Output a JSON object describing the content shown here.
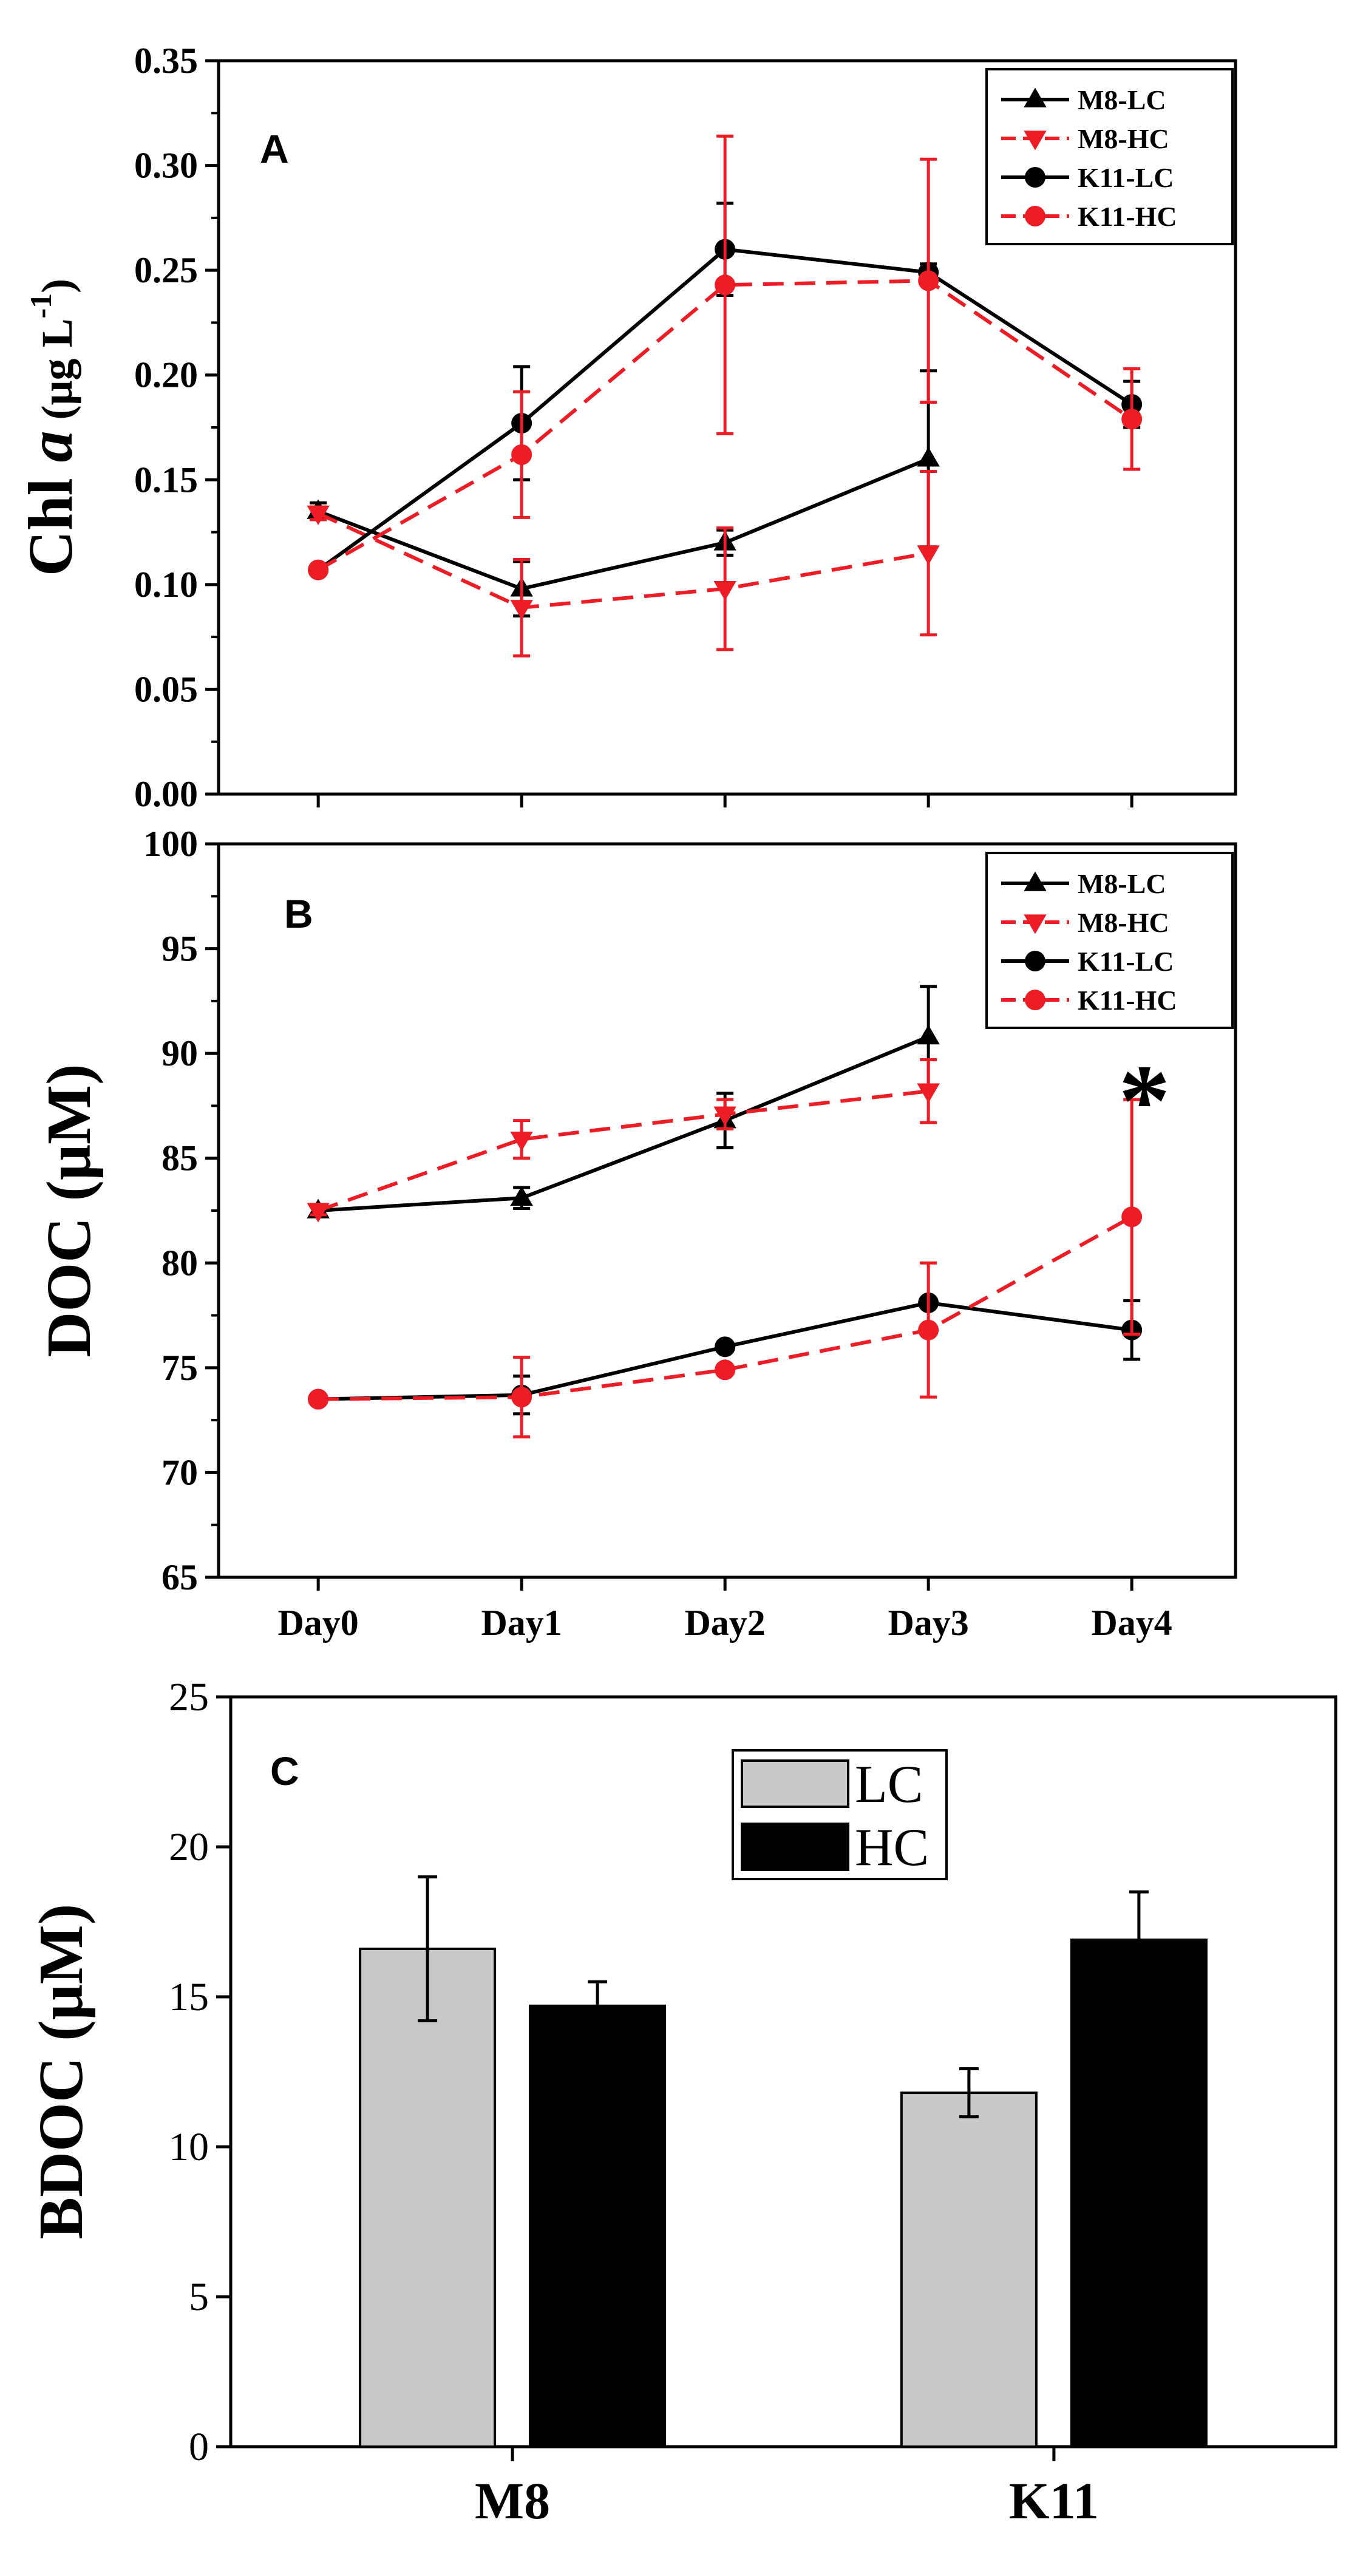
{
  "chart_data": [
    {
      "type": "line",
      "panel": "A",
      "ylabel_main": "Chl ",
      "ylabel_italic": "a",
      "ylabel_unit_open": " (μg L",
      "ylabel_unit_sup": "-1",
      "ylabel_unit_close": ")",
      "ylim": [
        0.0,
        0.35
      ],
      "yticks": [
        "0.00",
        "0.05",
        "0.10",
        "0.15",
        "0.20",
        "0.25",
        "0.30",
        "0.35"
      ],
      "categories": [
        "Day0",
        "Day1",
        "Day2",
        "Day3",
        "Day4"
      ],
      "legend_position": "top-right",
      "series": [
        {
          "name": "M8-LC",
          "color": "#000000",
          "marker": "triangle-up",
          "dash": false,
          "values": [
            0.135,
            0.098,
            0.12,
            0.16,
            null
          ],
          "errors": [
            0.004,
            0.013,
            0.006,
            0.042,
            null
          ]
        },
        {
          "name": "M8-HC",
          "color": "#ee1c25",
          "marker": "triangle-down",
          "dash": true,
          "values": [
            0.134,
            0.089,
            0.098,
            0.115,
            null
          ],
          "errors": [
            0.003,
            0.023,
            0.029,
            0.039,
            null
          ]
        },
        {
          "name": "K11-LC",
          "color": "#000000",
          "marker": "circle",
          "dash": false,
          "values": [
            0.107,
            0.177,
            0.26,
            0.249,
            0.186
          ],
          "errors": [
            0.0,
            0.027,
            0.022,
            0.004,
            0.011
          ]
        },
        {
          "name": "K11-HC",
          "color": "#ee1c25",
          "marker": "circle",
          "dash": true,
          "values": [
            0.107,
            0.162,
            0.243,
            0.245,
            0.179
          ],
          "errors": [
            0.0,
            0.03,
            0.071,
            0.058,
            0.024
          ]
        }
      ]
    },
    {
      "type": "line",
      "panel": "B",
      "ylabel": "DOC (μM)",
      "ylim": [
        65,
        100
      ],
      "yticks": [
        "65",
        "70",
        "75",
        "80",
        "85",
        "90",
        "95",
        "100"
      ],
      "categories": [
        "Day0",
        "Day1",
        "Day2",
        "Day3",
        "Day4"
      ],
      "annotation": "*",
      "legend_position": "top-right",
      "series": [
        {
          "name": "M8-LC",
          "color": "#000000",
          "marker": "triangle-up",
          "dash": false,
          "values": [
            82.5,
            83.1,
            86.8,
            90.8,
            null
          ],
          "errors": [
            0.2,
            0.5,
            1.3,
            2.4,
            null
          ]
        },
        {
          "name": "M8-HC",
          "color": "#ee1c25",
          "marker": "triangle-down",
          "dash": true,
          "values": [
            82.5,
            85.9,
            87.1,
            88.2,
            null
          ],
          "errors": [
            0.2,
            0.9,
            0.7,
            1.5,
            null
          ]
        },
        {
          "name": "K11-LC",
          "color": "#000000",
          "marker": "circle",
          "dash": false,
          "values": [
            73.5,
            73.7,
            76.0,
            78.1,
            76.8
          ],
          "errors": [
            0.0,
            0.9,
            0.0,
            0.0,
            1.4
          ]
        },
        {
          "name": "K11-HC",
          "color": "#ee1c25",
          "marker": "circle",
          "dash": true,
          "values": [
            73.5,
            73.6,
            74.9,
            76.8,
            82.2
          ],
          "errors": [
            0.0,
            1.9,
            0.0,
            3.2,
            5.6
          ]
        }
      ]
    },
    {
      "type": "bar",
      "panel": "C",
      "ylabel": "BDOC (μM)",
      "ylim": [
        0,
        25
      ],
      "yticks": [
        "0",
        "5",
        "10",
        "15",
        "20",
        "25"
      ],
      "categories": [
        "M8",
        "K11"
      ],
      "legend_position": "top-center",
      "series": [
        {
          "name": "LC",
          "color": "#c8c8c8",
          "values": [
            16.6,
            11.8
          ],
          "errors": [
            2.4,
            0.8
          ]
        },
        {
          "name": "HC",
          "color": "#000000",
          "values": [
            14.7,
            16.9
          ],
          "errors": [
            0.8,
            1.6
          ]
        }
      ]
    }
  ]
}
